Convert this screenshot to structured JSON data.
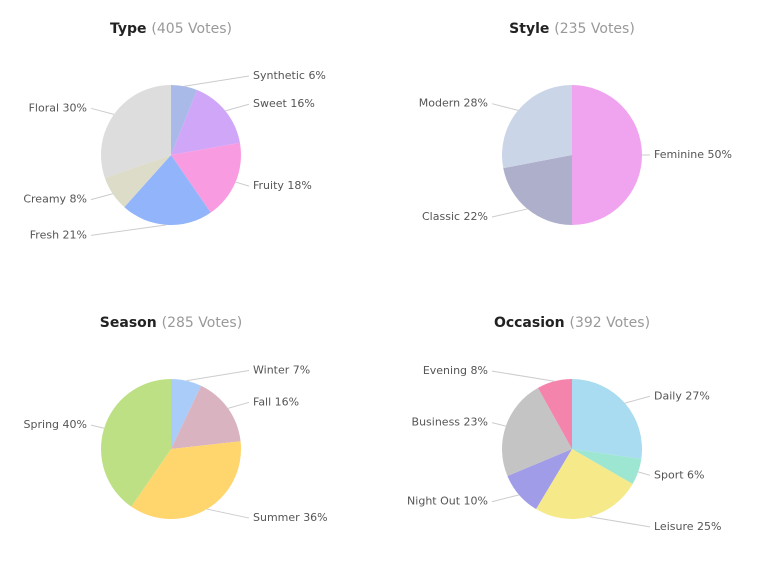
{
  "chart_data": [
    {
      "type": "pie",
      "title": "Type",
      "subtitle": "(405 Votes)",
      "categories": [
        "Synthetic",
        "Sweet",
        "Fruity",
        "Fresh",
        "Creamy",
        "Floral"
      ],
      "values": [
        6,
        16,
        18,
        21,
        8,
        30
      ],
      "value_labels": [
        "6%",
        "16%",
        "18%",
        "21%",
        "8%",
        "30%"
      ],
      "colors": [
        "#a9b9e8",
        "#d0a6f8",
        "#f99be0",
        "#92b4fb",
        "#dcdcc9",
        "#dddddd"
      ]
    },
    {
      "type": "pie",
      "title": "Style",
      "subtitle": "(235 Votes)",
      "categories": [
        "Feminine",
        "Classic",
        "Modern"
      ],
      "values": [
        50,
        22,
        28
      ],
      "value_labels": [
        "50%",
        "22%",
        "28%"
      ],
      "colors": [
        "#f0a3ef",
        "#aeb0cb",
        "#cbd5e8"
      ]
    },
    {
      "type": "pie",
      "title": "Season",
      "subtitle": "(285 Votes)",
      "categories": [
        "Winter",
        "Fall",
        "Summer",
        "Spring"
      ],
      "values": [
        7,
        16,
        36,
        40
      ],
      "value_labels": [
        "7%",
        "16%",
        "36%",
        "40%"
      ],
      "colors": [
        "#a9cdf8",
        "#d9b3bf",
        "#ffd56d",
        "#bde084"
      ]
    },
    {
      "type": "pie",
      "title": "Occasion",
      "subtitle": "(392 Votes)",
      "categories": [
        "Daily",
        "Sport",
        "Leisure",
        "Night Out",
        "Business",
        "Evening"
      ],
      "values": [
        27,
        6,
        25,
        10,
        23,
        8
      ],
      "value_labels": [
        "27%",
        "6%",
        "25%",
        "10%",
        "23%",
        "8%"
      ],
      "colors": [
        "#a9dcf0",
        "#9de6d2",
        "#f6e98a",
        "#a09ce8",
        "#c4c4c4",
        "#f584ac"
      ]
    }
  ]
}
